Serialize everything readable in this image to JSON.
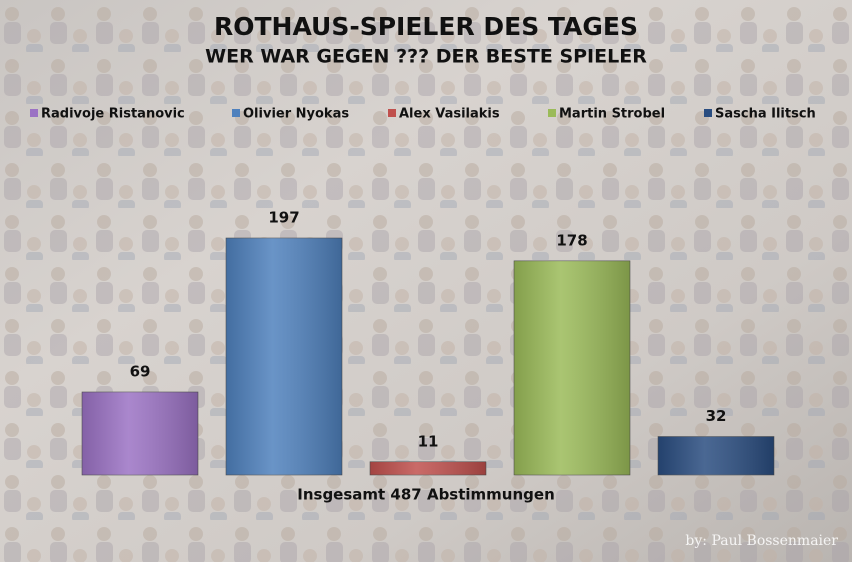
{
  "chart_data": {
    "type": "bar",
    "title": "ROTHAUS-SPIELER DES TAGES",
    "subtitle": "WER WAR GEGEN ??? DER BESTE SPIELER",
    "categories": [
      "Radivoje Ristanovic",
      "Olivier Nyokas",
      "Alex Vasilakis",
      "Martin Strobel",
      "Sascha Ilitsch"
    ],
    "values": [
      69,
      197,
      11,
      178,
      32
    ],
    "colors": [
      "#9b72c4",
      "#4f81bd",
      "#c0504d",
      "#9bbb59",
      "#2a4d80"
    ],
    "x_label": "Insgesamt 487 Abstimmungen",
    "credit": "by: Paul Bossenmaier"
  }
}
